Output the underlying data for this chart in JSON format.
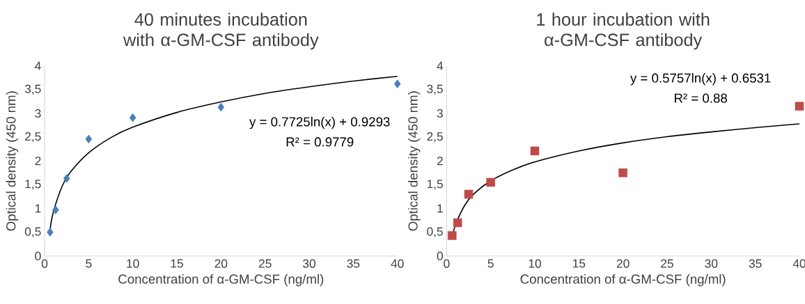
{
  "chart_data": [
    {
      "type": "scatter",
      "title": "40 minutes incubation with α-GM-CSF antibody",
      "xlabel": "Concentration of α-GM-CSF (ng/ml)",
      "ylabel": "Optical density (450 nm)",
      "xlim": [
        0,
        40
      ],
      "xticks": [
        0,
        5,
        10,
        15,
        20,
        25,
        30,
        35,
        40
      ],
      "ylim": [
        0,
        4
      ],
      "yticks": [
        0,
        {
          "value": 0.5,
          "label": "0,5"
        },
        1,
        {
          "value": 1.5,
          "label": "1,5"
        },
        2,
        {
          "value": 2.5,
          "label": "2,5"
        },
        3,
        {
          "value": 3.5,
          "label": "3,5"
        },
        4
      ],
      "grid": false,
      "annotations": [
        "y = 0.7725ln(x) + 0.9293",
        "R² = 0.9779"
      ],
      "series": [
        {
          "marker": "diamond",
          "color": "#4a7ebb",
          "x": [
            0.625,
            1.25,
            2.5,
            5,
            10,
            20,
            40
          ],
          "values": [
            0.5,
            0.97,
            1.63,
            2.46,
            2.91,
            3.13,
            3.62
          ]
        },
        {
          "type": "line",
          "marker": "none",
          "color": "#000000",
          "x": [
            0.625,
            1,
            2,
            3,
            5,
            7.5,
            10,
            15,
            20,
            25,
            30,
            35,
            40
          ],
          "values": [
            0.57,
            0.93,
            1.47,
            1.78,
            2.17,
            2.49,
            2.71,
            3.02,
            3.24,
            3.42,
            3.56,
            3.68,
            3.78
          ]
        }
      ]
    },
    {
      "type": "scatter",
      "title": "1 hour incubation with α-GM-CSF antibody",
      "xlabel": "Concentration of α-GM-CSF (ng/ml)",
      "ylabel": "Optical density (450 nm)",
      "xlim": [
        0,
        40
      ],
      "xticks": [
        0,
        5,
        10,
        15,
        20,
        25,
        30,
        35,
        40
      ],
      "ylim": [
        0,
        4
      ],
      "yticks": [
        0,
        {
          "value": 0.5,
          "label": "0,5"
        },
        1,
        {
          "value": 1.5,
          "label": "1,5"
        },
        2,
        {
          "value": 2.5,
          "label": "2,5"
        },
        3,
        {
          "value": 3.5,
          "label": "3,5"
        },
        4
      ],
      "grid": false,
      "annotations": [
        "y = 0.5757ln(x) + 0.6531",
        "R² = 0.88"
      ],
      "series": [
        {
          "marker": "square",
          "color": "#be4b48",
          "x": [
            0.625,
            1.25,
            2.5,
            5,
            10,
            20,
            40
          ],
          "values": [
            0.43,
            0.7,
            1.3,
            1.55,
            2.21,
            1.75,
            3.15
          ]
        },
        {
          "type": "line",
          "marker": "none",
          "color": "#000000",
          "x": [
            0.625,
            1,
            2,
            3,
            5,
            7.5,
            10,
            15,
            20,
            25,
            30,
            35,
            40
          ],
          "values": [
            0.38,
            0.65,
            1.05,
            1.29,
            1.58,
            1.81,
            1.98,
            2.21,
            2.38,
            2.51,
            2.61,
            2.7,
            2.78
          ]
        }
      ]
    }
  ]
}
